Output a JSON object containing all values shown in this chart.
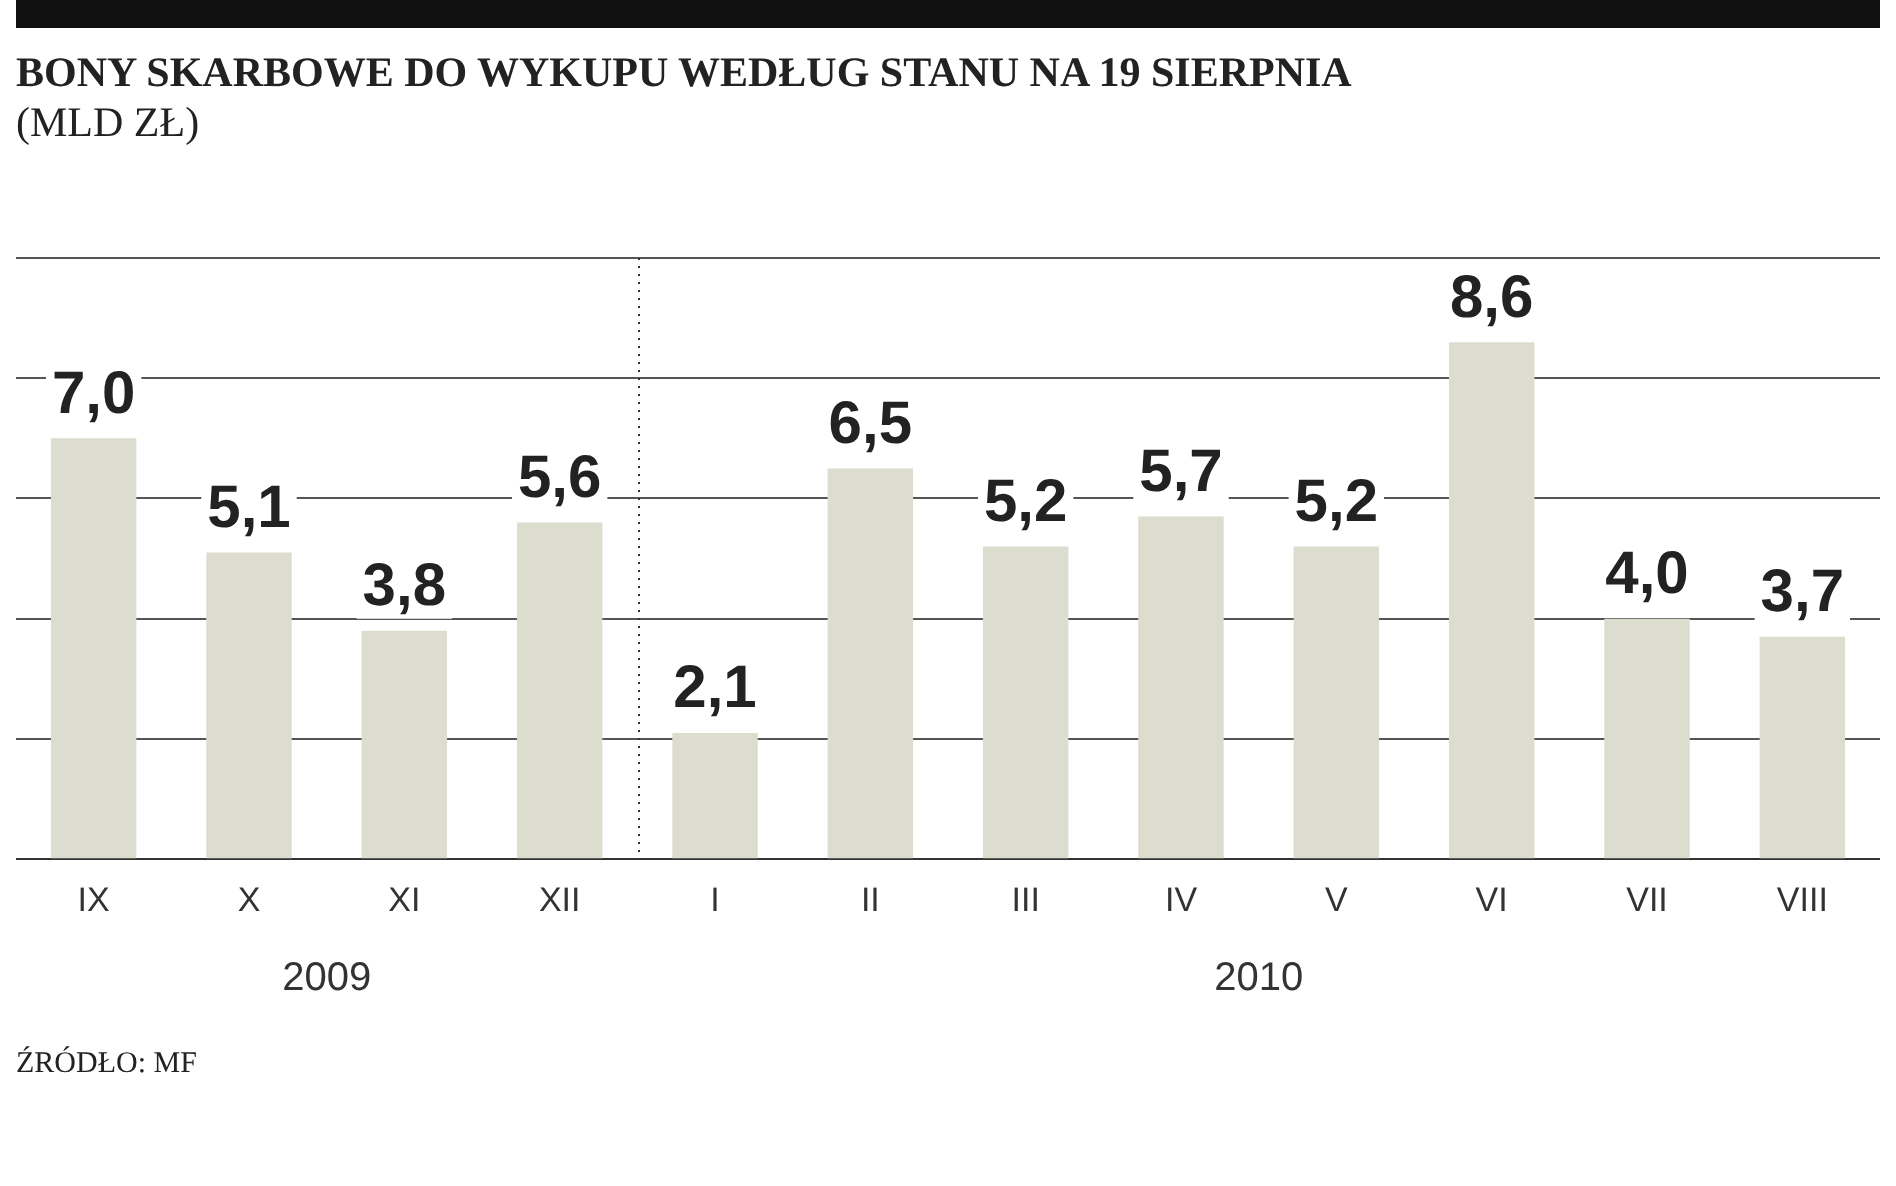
{
  "chart_data": {
    "type": "bar",
    "title": "BONY SKARBOWE DO WYKUPU WEDŁUG STANU NA 19 SIERPNIA",
    "subtitle": "(MLD ZŁ)",
    "categories": [
      "IX",
      "X",
      "XI",
      "XII",
      "I",
      "II",
      "III",
      "IV",
      "V",
      "VI",
      "VII",
      "VIII"
    ],
    "values": [
      7.0,
      5.1,
      3.8,
      5.6,
      2.1,
      6.5,
      5.2,
      5.7,
      5.2,
      8.6,
      4.0,
      3.7
    ],
    "value_labels": [
      "7,0",
      "5,1",
      "3,8",
      "5,6",
      "2,1",
      "6,5",
      "5,2",
      "5,7",
      "5,2",
      "8,6",
      "4,0",
      "3,7"
    ],
    "color": "#dcdccf",
    "ylim": [
      0,
      10
    ],
    "yticks": [
      {
        "value": 0,
        "label": null
      },
      {
        "value": 2,
        "label": null
      },
      {
        "value": 4,
        "label": null
      },
      {
        "value": 6,
        "label": null
      },
      {
        "value": 8,
        "label": null
      },
      {
        "value": 10,
        "label": null
      }
    ],
    "tick_labels": "x",
    "grid": "y",
    "legend": false,
    "annotations": [
      "2009",
      "2010",
      "ŹRÓDŁO: MF"
    ]
  }
}
